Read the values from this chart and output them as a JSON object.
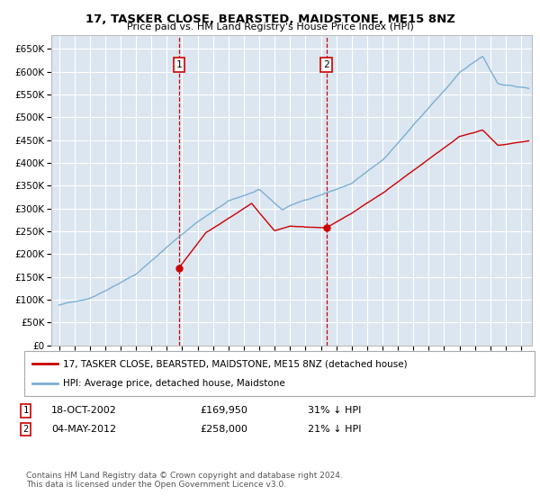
{
  "title": "17, TASKER CLOSE, BEARSTED, MAIDSTONE, ME15 8NZ",
  "subtitle": "Price paid vs. HM Land Registry's House Price Index (HPI)",
  "ylim": [
    0,
    680000
  ],
  "yticks": [
    0,
    50000,
    100000,
    150000,
    200000,
    250000,
    300000,
    350000,
    400000,
    450000,
    500000,
    550000,
    600000,
    650000
  ],
  "xlim_start": 1994.5,
  "xlim_end": 2025.7,
  "plot_bg": "#dce6f1",
  "grid_color": "#ffffff",
  "sale1": {
    "date_label": "18-OCT-2002",
    "price": 169950,
    "hpi_pct": "31% ↓ HPI",
    "x": 2002.8
  },
  "sale2": {
    "date_label": "04-MAY-2012",
    "price": 258000,
    "hpi_pct": "21% ↓ HPI",
    "x": 2012.35
  },
  "legend_property": "17, TASKER CLOSE, BEARSTED, MAIDSTONE, ME15 8NZ (detached house)",
  "legend_hpi": "HPI: Average price, detached house, Maidstone",
  "footnote": "Contains HM Land Registry data © Crown copyright and database right 2024.\nThis data is licensed under the Open Government Licence v3.0.",
  "property_color": "#cc0000",
  "hpi_color": "#7bafd4",
  "marker_box_color": "#cc0000"
}
